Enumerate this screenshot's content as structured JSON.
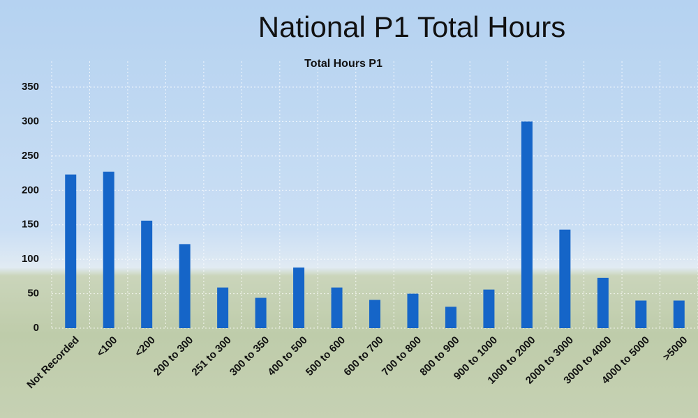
{
  "chart_data": {
    "type": "bar",
    "title": "National P1 Total Hours",
    "subtitle": "Total Hours P1",
    "categories": [
      "Not Recorded",
      "<100",
      "<200",
      "200 to 300",
      "251 to 300",
      "300 to 350",
      "400 to 500",
      "500 to 600",
      "600 to 700",
      "700 to 800",
      "800 to 900",
      "900 to 1000",
      "1000 to 2000",
      "2000 to 3000",
      "3000 to 4000",
      "4000 to 5000",
      ">5000"
    ],
    "values": [
      223,
      227,
      156,
      122,
      59,
      44,
      88,
      59,
      41,
      50,
      31,
      56,
      300,
      143,
      73,
      40,
      40
    ],
    "color": "#1565c8",
    "ylim": [
      0,
      350
    ],
    "yticks": [
      0,
      50,
      100,
      150,
      200,
      250,
      300,
      350
    ],
    "grid": true
  }
}
